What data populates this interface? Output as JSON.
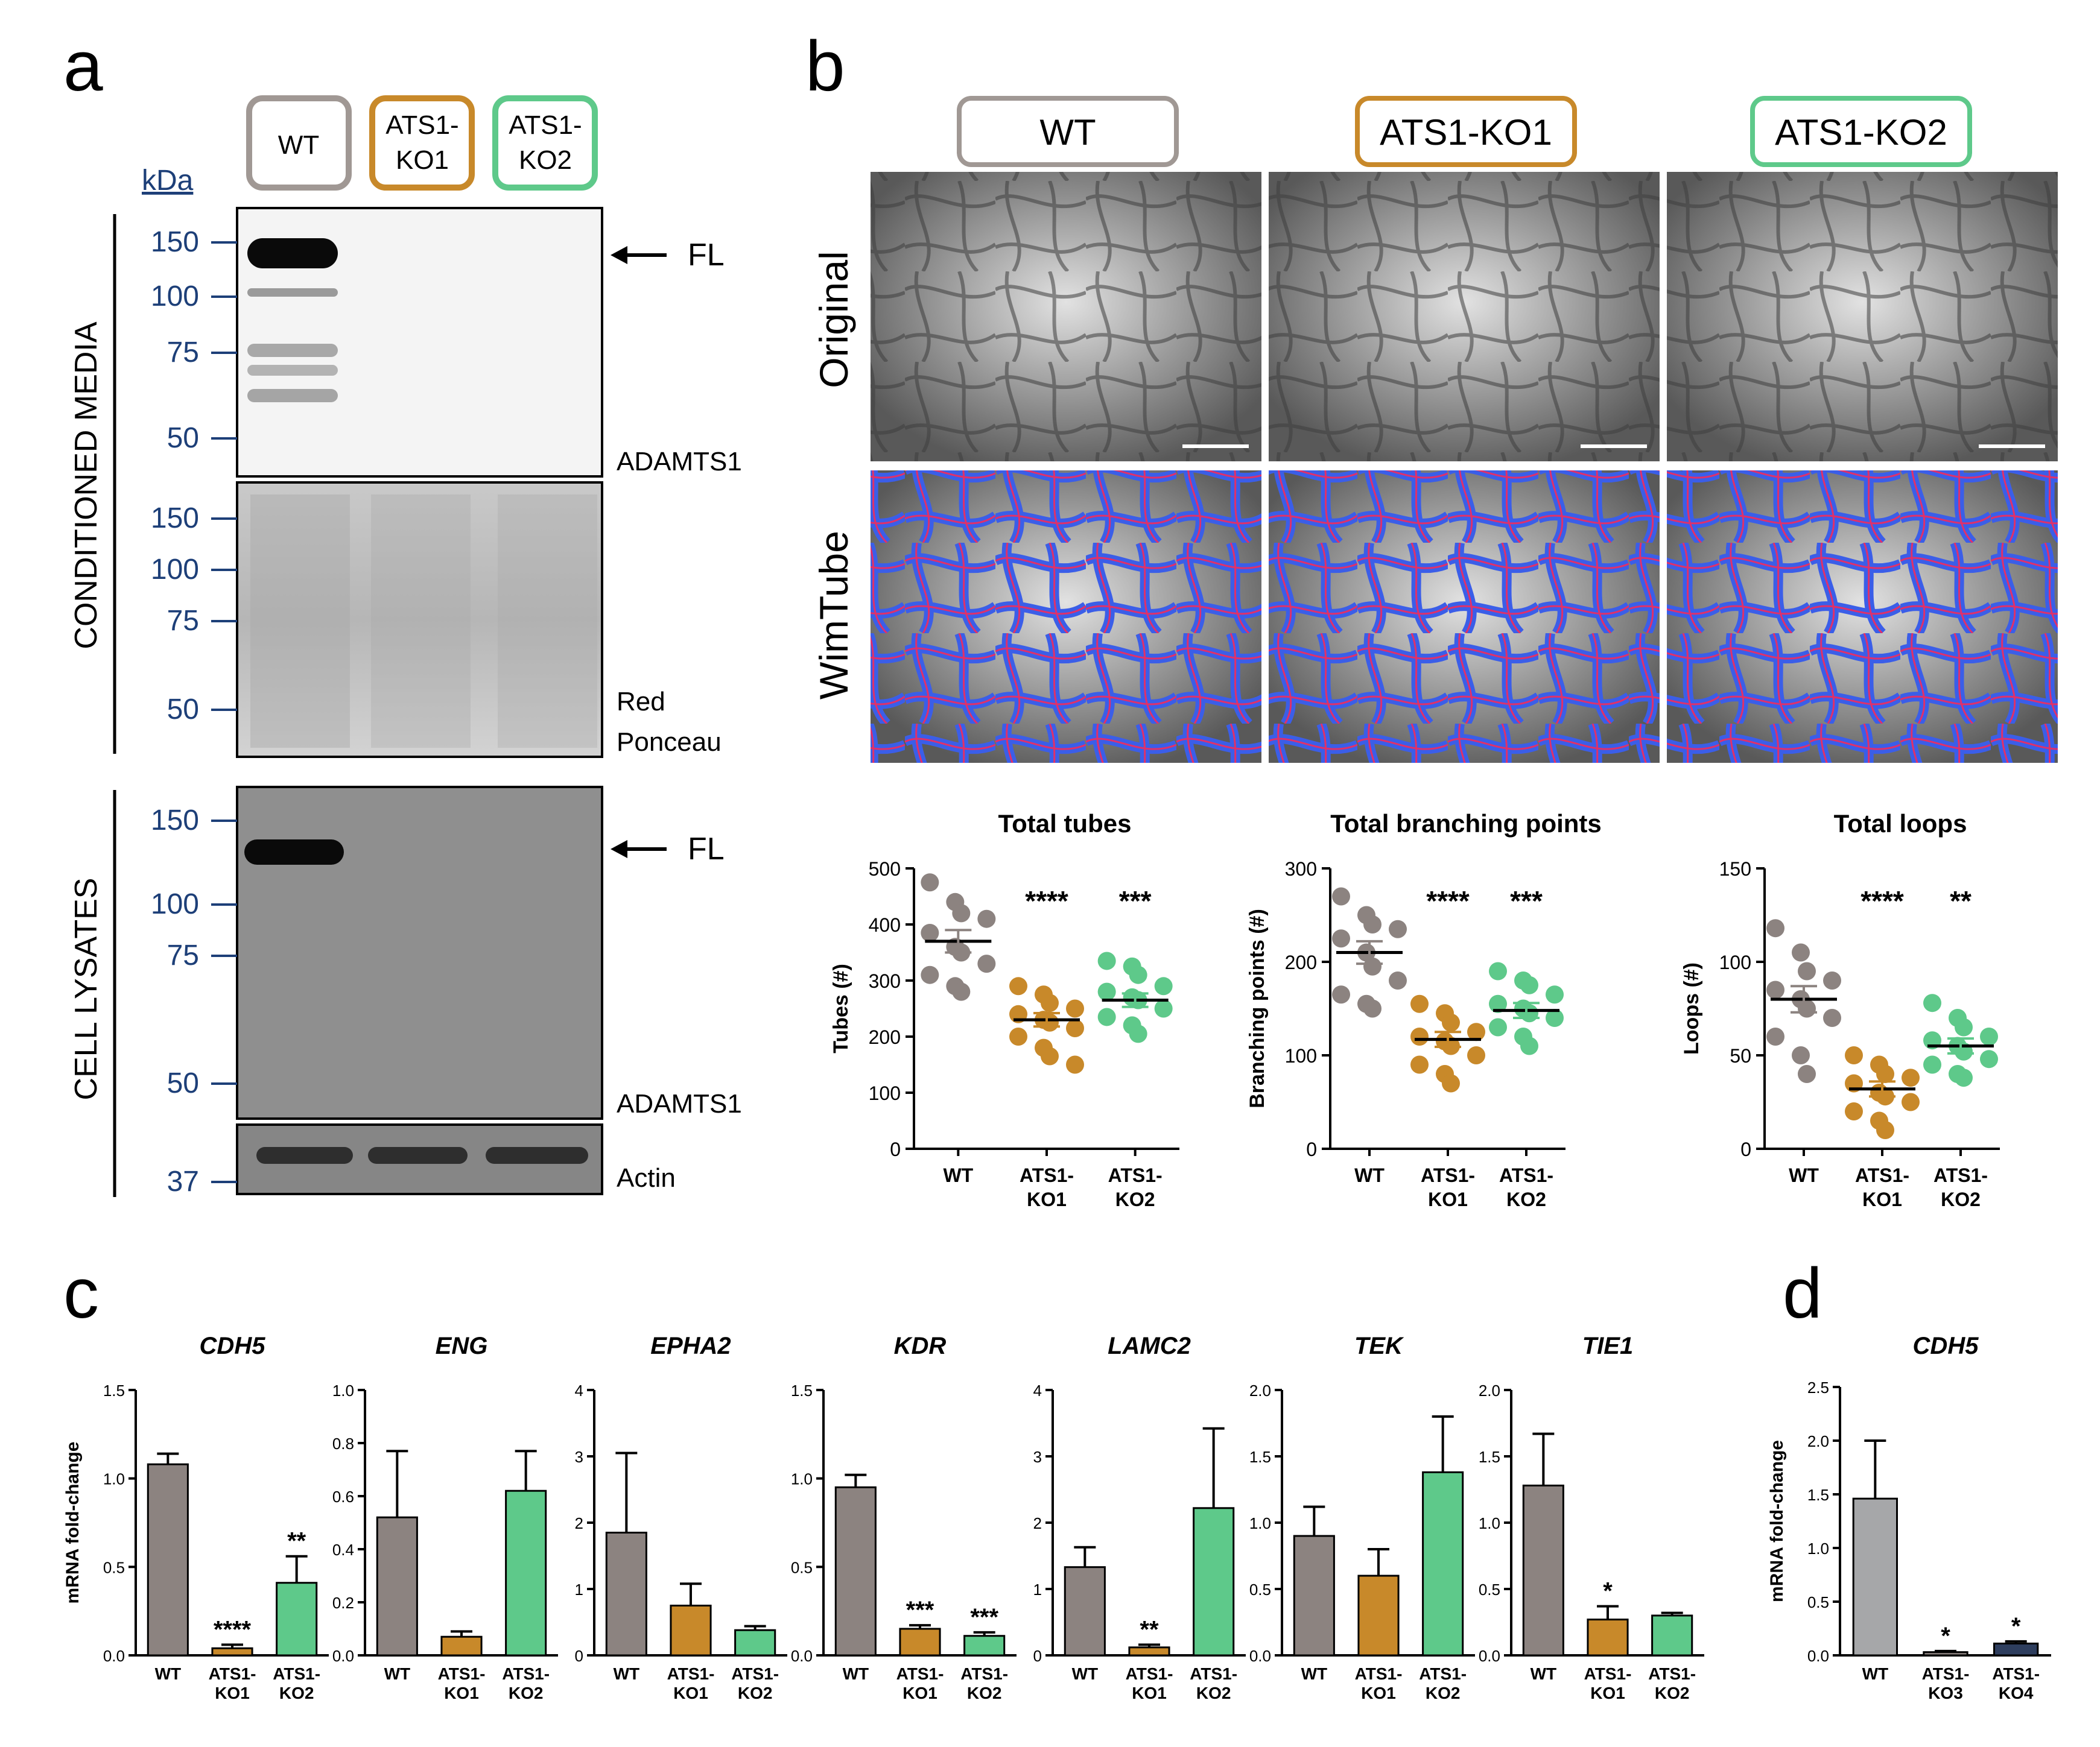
{
  "panel_letters": [
    "a",
    "b",
    "c",
    "d"
  ],
  "colors": {
    "wt": "#8c8380",
    "ko1": "#c8892a",
    "ko2": "#5ec98a",
    "ko3": "#a6a7a9",
    "ko4": "#2e3e5e",
    "wt_box": "#a09894",
    "ko1_box": "#c8892a",
    "ko2_box": "#5ec98a",
    "blot_label": "#1d3f78"
  },
  "panel_a": {
    "lane_labels": [
      "WT",
      "ATS1-\nKO1",
      "ATS1-\nKO2"
    ],
    "kda_label": "kDa",
    "conditioned_media_label": "CONDITIONED MEDIA",
    "cell_lysates_label": "CELL LYSATES",
    "blot1": {
      "markers": [
        "150",
        "100",
        "75",
        "50"
      ],
      "label": "ADAMTS1",
      "arrow_label": "FL"
    },
    "blot2": {
      "markers": [
        "150",
        "100",
        "75",
        "50"
      ],
      "label_lines": [
        "Red",
        "Ponceau"
      ]
    },
    "blot3": {
      "markers": [
        "150",
        "100",
        "75",
        "50"
      ],
      "label": "ADAMTS1",
      "arrow_label": "FL"
    },
    "blot4": {
      "markers": [
        "37"
      ],
      "label": "Actin"
    }
  },
  "panel_b": {
    "column_labels": [
      "WT",
      "ATS1-KO1",
      "ATS1-KO2"
    ],
    "row_labels": [
      "Original",
      "WimTube"
    ]
  },
  "chart_data": [
    {
      "type": "scatter",
      "title": "Total tubes",
      "ylabel": "Tubes (#)",
      "ylim": [
        0,
        500
      ],
      "yticks": [
        "0",
        "100",
        "200",
        "300",
        "400",
        "500"
      ],
      "categories": [
        "WT",
        "ATS1-\nKO1",
        "ATS1-\nKO2"
      ],
      "series": [
        {
          "values": [
            475,
            440,
            420,
            410,
            385,
            360,
            350,
            330,
            310,
            290,
            280
          ],
          "mean": 370,
          "sem": 20
        },
        {
          "values": [
            290,
            275,
            260,
            250,
            240,
            230,
            225,
            215,
            200,
            180,
            165,
            150
          ],
          "mean": 230,
          "sem": 12
        },
        {
          "values": [
            335,
            325,
            310,
            290,
            280,
            270,
            265,
            250,
            235,
            220,
            205
          ],
          "mean": 265,
          "sem": 12
        }
      ],
      "significance": [
        "",
        "****",
        "***"
      ]
    },
    {
      "type": "scatter",
      "title": "Total branching points",
      "ylabel": "Branching points (#)",
      "ylim": [
        0,
        300
      ],
      "yticks": [
        "0",
        "100",
        "200",
        "300"
      ],
      "categories": [
        "WT",
        "ATS1-\nKO1",
        "ATS1-\nKO2"
      ],
      "series": [
        {
          "values": [
            270,
            250,
            240,
            235,
            225,
            210,
            195,
            180,
            165,
            155,
            150
          ],
          "mean": 210,
          "sem": 12
        },
        {
          "values": [
            155,
            145,
            135,
            125,
            120,
            115,
            110,
            100,
            90,
            80,
            70
          ],
          "mean": 117,
          "sem": 8
        },
        {
          "values": [
            190,
            180,
            175,
            165,
            155,
            150,
            145,
            140,
            130,
            120,
            110
          ],
          "mean": 148,
          "sem": 8
        }
      ],
      "significance": [
        "",
        "****",
        "***"
      ]
    },
    {
      "type": "scatter",
      "title": "Total loops",
      "ylabel": "Loops (#)",
      "ylim": [
        0,
        150
      ],
      "yticks": [
        "0",
        "50",
        "100",
        "150"
      ],
      "categories": [
        "WT",
        "ATS1-\nKO1",
        "ATS1-\nKO2"
      ],
      "series": [
        {
          "values": [
            118,
            105,
            95,
            90,
            85,
            80,
            75,
            70,
            60,
            50,
            40
          ],
          "mean": 80,
          "sem": 7
        },
        {
          "values": [
            50,
            45,
            40,
            38,
            35,
            30,
            28,
            25,
            20,
            15,
            10
          ],
          "mean": 32,
          "sem": 4
        },
        {
          "values": [
            78,
            70,
            65,
            60,
            58,
            55,
            52,
            48,
            45,
            40,
            38
          ],
          "mean": 55,
          "sem": 4
        }
      ],
      "significance": [
        "",
        "****",
        "**"
      ]
    },
    {
      "type": "bar",
      "title": "CDH5",
      "ylabel": "mRNA fold-change",
      "ylim": [
        0,
        1.5
      ],
      "yticks": [
        "0.0",
        "0.5",
        "1.0",
        "1.5"
      ],
      "categories": [
        "WT",
        "ATS1-\nKO1",
        "ATS1-\nKO2"
      ],
      "values": [
        1.08,
        0.04,
        0.41
      ],
      "errors": [
        0.06,
        0.02,
        0.15
      ],
      "significance": [
        "",
        "****",
        "**"
      ]
    },
    {
      "type": "bar",
      "title": "ENG",
      "ylim": [
        0,
        1.0
      ],
      "yticks": [
        "0.0",
        "0.2",
        "0.4",
        "0.6",
        "0.8",
        "1.0"
      ],
      "categories": [
        "WT",
        "ATS1-\nKO1",
        "ATS1-\nKO2"
      ],
      "values": [
        0.52,
        0.07,
        0.62
      ],
      "errors": [
        0.25,
        0.02,
        0.15
      ],
      "significance": [
        "",
        "",
        ""
      ]
    },
    {
      "type": "bar",
      "title": "EPHA2",
      "ylim": [
        0,
        4
      ],
      "yticks": [
        "0",
        "1",
        "2",
        "3",
        "4"
      ],
      "categories": [
        "WT",
        "ATS1-\nKO1",
        "ATS1-\nKO2"
      ],
      "values": [
        1.85,
        0.75,
        0.38
      ],
      "errors": [
        1.2,
        0.33,
        0.06
      ],
      "significance": [
        "",
        "",
        ""
      ]
    },
    {
      "type": "bar",
      "title": "KDR",
      "ylim": [
        0,
        1.5
      ],
      "yticks": [
        "0.0",
        "0.5",
        "1.0",
        "1.5"
      ],
      "categories": [
        "WT",
        "ATS1-\nKO1",
        "ATS1-\nKO2"
      ],
      "values": [
        0.95,
        0.15,
        0.11
      ],
      "errors": [
        0.07,
        0.02,
        0.02
      ],
      "significance": [
        "",
        "***",
        "***"
      ]
    },
    {
      "type": "bar",
      "title": "LAMC2",
      "ylim": [
        0,
        4
      ],
      "yticks": [
        "0",
        "1",
        "2",
        "3",
        "4"
      ],
      "categories": [
        "WT",
        "ATS1-\nKO1",
        "ATS1-\nKO2"
      ],
      "values": [
        1.33,
        0.12,
        2.22
      ],
      "errors": [
        0.3,
        0.04,
        1.2
      ],
      "significance": [
        "",
        "**",
        ""
      ]
    },
    {
      "type": "bar",
      "title": "TEK",
      "ylim": [
        0,
        2.0
      ],
      "yticks": [
        "0.0",
        "0.5",
        "1.0",
        "1.5",
        "2.0"
      ],
      "categories": [
        "WT",
        "ATS1-\nKO1",
        "ATS1-\nKO2"
      ],
      "values": [
        0.9,
        0.6,
        1.38
      ],
      "errors": [
        0.22,
        0.2,
        0.42
      ],
      "significance": [
        "",
        "",
        ""
      ]
    },
    {
      "type": "bar",
      "title": "TIE1",
      "ylim": [
        0,
        2.0
      ],
      "yticks": [
        "0.0",
        "0.5",
        "1.0",
        "1.5",
        "2.0"
      ],
      "categories": [
        "WT",
        "ATS1-\nKO1",
        "ATS1-\nKO2"
      ],
      "values": [
        1.28,
        0.27,
        0.3
      ],
      "errors": [
        0.39,
        0.1,
        0.02
      ],
      "significance": [
        "",
        "*",
        ""
      ]
    },
    {
      "type": "bar",
      "title": "CDH5",
      "ylabel": "mRNA fold-change",
      "ylim": [
        0,
        2.5
      ],
      "yticks": [
        "0.0",
        "0.5",
        "1.0",
        "1.5",
        "2.0",
        "2.5"
      ],
      "categories": [
        "WT",
        "ATS1-\nKO3",
        "ATS1-\nKO4"
      ],
      "values": [
        1.46,
        0.03,
        0.11
      ],
      "errors": [
        0.54,
        0.01,
        0.02
      ],
      "significance": [
        "",
        "*",
        "*"
      ]
    }
  ]
}
